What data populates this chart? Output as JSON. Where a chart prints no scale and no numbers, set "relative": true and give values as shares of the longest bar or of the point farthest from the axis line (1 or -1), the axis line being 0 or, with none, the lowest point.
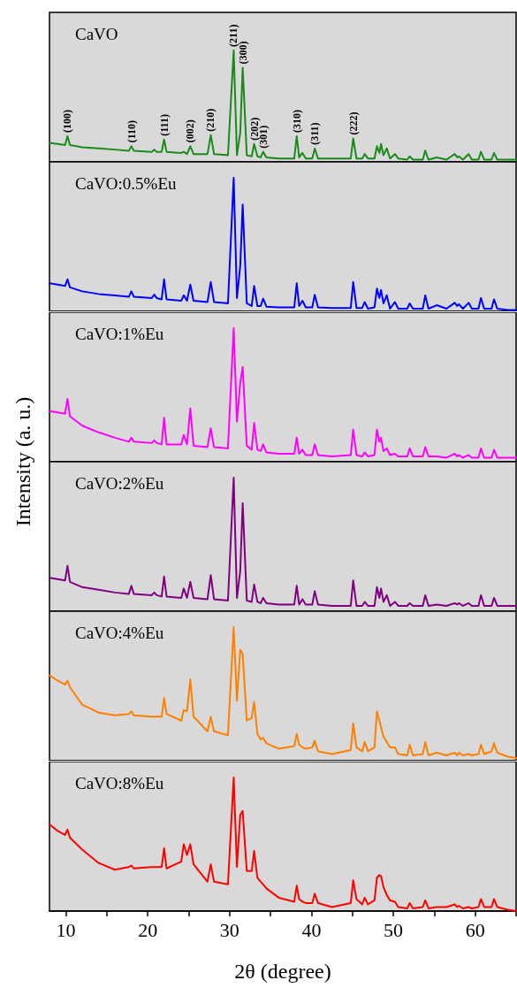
{
  "chart_data": [
    {
      "type": "line",
      "title": "CaVO",
      "relative": true,
      "xlim": [
        8,
        65
      ],
      "xticks": [
        10,
        {
          "value": 15,
          "label": null
        },
        20,
        {
          "value": 25,
          "label": null
        },
        30,
        {
          "value": 35,
          "label": null
        },
        40,
        {
          "value": 45,
          "label": null
        },
        50,
        {
          "value": 55,
          "label": null
        },
        60,
        {
          "value": 65,
          "label": null
        }
      ],
      "tick_labels": false,
      "x": [
        8,
        9,
        9.9,
        10.2,
        10.5,
        12,
        14,
        16,
        17.7,
        18,
        18.3,
        20.5,
        20.8,
        21.1,
        21.7,
        22,
        22.3,
        24.1,
        24.4,
        24.8,
        25.2,
        25.6,
        27.3,
        27.7,
        28.1,
        29.8,
        30.5,
        30.9,
        31.3,
        31.6,
        32.1,
        32.7,
        33,
        33.4,
        33.8,
        34.1,
        34.5,
        36,
        37.9,
        38.2,
        38.5,
        38.9,
        39.3,
        40.1,
        40.4,
        40.8,
        42.5,
        44.8,
        45.1,
        45.5,
        46.2,
        46.5,
        46.9,
        47.7,
        48,
        48.3,
        48.5,
        48.8,
        49.2,
        49.6,
        50.2,
        50.6,
        51.7,
        52,
        52.4,
        53.6,
        53.9,
        54.3,
        55.3,
        56.5,
        57.5,
        57.8,
        58,
        58.5,
        59.2,
        59.6,
        60.4,
        60.7,
        61.1,
        62,
        62.3,
        62.7,
        64,
        65
      ],
      "series": [
        {
          "color": "#1a8a1a",
          "values": [
            0.17,
            0.16,
            0.15,
            0.23,
            0.15,
            0.13,
            0.12,
            0.11,
            0.1,
            0.14,
            0.1,
            0.09,
            0.11,
            0.09,
            0.09,
            0.2,
            0.09,
            0.08,
            0.09,
            0.07,
            0.14,
            0.07,
            0.07,
            0.24,
            0.07,
            0.06,
            1.0,
            0.06,
            0.26,
            0.845,
            0.06,
            0.05,
            0.16,
            0.05,
            0.04,
            0.09,
            0.04,
            0.03,
            0.03,
            0.23,
            0.04,
            0.08,
            0.03,
            0.03,
            0.12,
            0.03,
            0.03,
            0.03,
            0.21,
            0.03,
            0.03,
            0.07,
            0.03,
            0.03,
            0.14,
            0.08,
            0.16,
            0.06,
            0.12,
            0.03,
            0.07,
            0.03,
            0.02,
            0.05,
            0.02,
            0.02,
            0.1,
            0.02,
            0.04,
            0.02,
            0.07,
            0.04,
            0.05,
            0.02,
            0.07,
            0.02,
            0.02,
            0.09,
            0.02,
            0.02,
            0.08,
            0.02,
            0.02,
            0.02
          ]
        }
      ],
      "annotations": [
        {
          "text": "(100)",
          "x": 10.2,
          "y": 0.23
        },
        {
          "text": "(110)",
          "x": 18,
          "y": 0.14
        },
        {
          "text": "(111)",
          "x": 22,
          "y": 0.2
        },
        {
          "text": "(002)",
          "x": 25.2,
          "y": 0.14
        },
        {
          "text": "(210)",
          "x": 27.7,
          "y": 0.24
        },
        {
          "text": "(211)",
          "x": 30.5,
          "y": 1.0
        },
        {
          "text": "(300)",
          "x": 31.6,
          "y": 0.845
        },
        {
          "text": "(202)",
          "x": 33,
          "y": 0.16
        },
        {
          "text": "(301)",
          "x": 34.1,
          "y": 0.09
        },
        {
          "text": "(310)",
          "x": 38.2,
          "y": 0.23
        },
        {
          "text": "(311)",
          "x": 40.4,
          "y": 0.12
        },
        {
          "text": "(222)",
          "x": 45.1,
          "y": 0.21
        }
      ]
    },
    {
      "type": "line",
      "title": "CaVO:0.5%Eu",
      "relative": true,
      "xlim": [
        8,
        65
      ],
      "xticks": [
        10,
        {
          "value": 15,
          "label": null
        },
        20,
        {
          "value": 25,
          "label": null
        },
        30,
        {
          "value": 35,
          "label": null
        },
        40,
        {
          "value": 45,
          "label": null
        },
        50,
        {
          "value": 55,
          "label": null
        },
        60,
        {
          "value": 65,
          "label": null
        }
      ],
      "tick_labels": false,
      "x": [
        8,
        9,
        9.9,
        10.2,
        10.5,
        12,
        14,
        16,
        17.7,
        18,
        18.3,
        20.5,
        20.8,
        21.1,
        21.7,
        22,
        22.3,
        24.1,
        24.4,
        24.8,
        25.2,
        25.6,
        27.3,
        27.7,
        28.1,
        29.8,
        30.5,
        30.9,
        31.3,
        31.6,
        32.1,
        32.7,
        33,
        33.4,
        33.8,
        34.1,
        34.5,
        36,
        37.9,
        38.2,
        38.5,
        38.9,
        39.3,
        40.1,
        40.4,
        40.8,
        42.5,
        44.8,
        45.1,
        45.5,
        46.2,
        46.5,
        46.9,
        47.7,
        48,
        48.3,
        48.5,
        48.8,
        49.2,
        49.6,
        50.2,
        50.6,
        51.7,
        52,
        52.4,
        53.6,
        53.9,
        54.3,
        55.3,
        56.5,
        57.5,
        57.8,
        58,
        58.5,
        59.2,
        59.6,
        60.4,
        60.7,
        61.1,
        62,
        62.3,
        62.7,
        64,
        65
      ],
      "series": [
        {
          "color": "#0000ff",
          "values": [
            0.21,
            0.2,
            0.19,
            0.24,
            0.18,
            0.15,
            0.13,
            0.12,
            0.11,
            0.15,
            0.11,
            0.1,
            0.125,
            0.1,
            0.09,
            0.24,
            0.09,
            0.08,
            0.12,
            0.08,
            0.2,
            0.08,
            0.07,
            0.22,
            0.07,
            0.06,
            1.0,
            0.1,
            0.34,
            0.8,
            0.06,
            0.04,
            0.19,
            0.04,
            0.04,
            0.095,
            0.035,
            0.03,
            0.03,
            0.21,
            0.04,
            0.08,
            0.03,
            0.03,
            0.125,
            0.03,
            0.025,
            0.025,
            0.22,
            0.025,
            0.025,
            0.07,
            0.02,
            0.03,
            0.17,
            0.1,
            0.16,
            0.06,
            0.12,
            0.02,
            0.07,
            0.02,
            0.02,
            0.06,
            0.02,
            0.02,
            0.12,
            0.02,
            0.046,
            0.02,
            0.064,
            0.04,
            0.054,
            0.02,
            0.064,
            0.02,
            0.02,
            0.1,
            0.02,
            0.02,
            0.09,
            0.02,
            0.01,
            0.01
          ]
        }
      ]
    },
    {
      "type": "line",
      "title": "CaVO:1%Eu",
      "ylabel": "Intensity (a. u.)",
      "relative": true,
      "xlim": [
        8,
        65
      ],
      "xticks": [
        10,
        {
          "value": 15,
          "label": null
        },
        20,
        {
          "value": 25,
          "label": null
        },
        30,
        {
          "value": 35,
          "label": null
        },
        40,
        {
          "value": 45,
          "label": null
        },
        50,
        {
          "value": 55,
          "label": null
        },
        60,
        {
          "value": 65,
          "label": null
        }
      ],
      "tick_labels": false,
      "x": [
        8,
        9,
        9.9,
        10.2,
        10.5,
        12,
        14,
        16,
        17.7,
        18,
        18.3,
        20.5,
        20.8,
        21.1,
        21.7,
        22,
        22.3,
        24.1,
        24.4,
        24.8,
        25.2,
        25.6,
        27.3,
        27.7,
        28.1,
        29.8,
        30.5,
        30.9,
        31.3,
        31.6,
        32.1,
        32.7,
        33,
        33.4,
        33.8,
        34.1,
        34.5,
        36,
        37.9,
        38.2,
        38.5,
        38.9,
        39.3,
        40.1,
        40.4,
        40.8,
        42.5,
        44.8,
        45.1,
        45.5,
        46.2,
        46.5,
        46.9,
        47.7,
        48,
        48.3,
        48.5,
        48.8,
        49.2,
        49.6,
        50.2,
        50.6,
        51.7,
        52,
        52.4,
        53.6,
        53.9,
        54.3,
        55.3,
        56.5,
        57.5,
        57.8,
        58,
        58.5,
        59.2,
        59.6,
        60.4,
        60.7,
        61.1,
        62,
        62.3,
        62.7,
        64,
        65
      ],
      "series": [
        {
          "color": "#ff00ff",
          "values": [
            0.38,
            0.37,
            0.36,
            0.47,
            0.34,
            0.27,
            0.22,
            0.18,
            0.15,
            0.18,
            0.15,
            0.14,
            0.16,
            0.14,
            0.13,
            0.33,
            0.13,
            0.13,
            0.2,
            0.13,
            0.4,
            0.12,
            0.11,
            0.25,
            0.11,
            0.1,
            1.0,
            0.3,
            0.59,
            0.71,
            0.12,
            0.09,
            0.29,
            0.09,
            0.08,
            0.13,
            0.07,
            0.06,
            0.06,
            0.18,
            0.06,
            0.09,
            0.05,
            0.05,
            0.13,
            0.05,
            0.04,
            0.05,
            0.24,
            0.05,
            0.04,
            0.07,
            0.04,
            0.05,
            0.24,
            0.15,
            0.18,
            0.08,
            0.1,
            0.05,
            0.06,
            0.04,
            0.04,
            0.1,
            0.04,
            0.04,
            0.11,
            0.04,
            0.04,
            0.03,
            0.06,
            0.04,
            0.05,
            0.03,
            0.05,
            0.03,
            0.03,
            0.1,
            0.03,
            0.03,
            0.09,
            0.03,
            0.03,
            0.03
          ]
        }
      ]
    },
    {
      "type": "line",
      "title": "CaVO:2%Eu",
      "relative": true,
      "xlim": [
        8,
        65
      ],
      "xticks": [
        10,
        {
          "value": 15,
          "label": null
        },
        20,
        {
          "value": 25,
          "label": null
        },
        30,
        {
          "value": 35,
          "label": null
        },
        40,
        {
          "value": 45,
          "label": null
        },
        50,
        {
          "value": 55,
          "label": null
        },
        60,
        {
          "value": 65,
          "label": null
        }
      ],
      "tick_labels": false,
      "x": [
        8,
        9,
        9.9,
        10.2,
        10.5,
        12,
        14,
        16,
        17.7,
        18,
        18.3,
        20.5,
        20.8,
        21.1,
        21.7,
        22,
        22.3,
        24.1,
        24.4,
        24.8,
        25.2,
        25.6,
        27.3,
        27.7,
        28.1,
        29.8,
        30.5,
        30.9,
        31.3,
        31.6,
        32.1,
        32.7,
        33,
        33.4,
        33.8,
        34.1,
        34.5,
        36,
        37.9,
        38.2,
        38.5,
        38.9,
        39.3,
        40.1,
        40.4,
        40.8,
        42.5,
        44.8,
        45.1,
        45.5,
        46.2,
        46.5,
        46.9,
        47.7,
        48,
        48.3,
        48.5,
        48.8,
        49.2,
        49.6,
        50.2,
        50.6,
        51.7,
        52,
        52.4,
        53.6,
        53.9,
        54.3,
        55.3,
        56.5,
        57.5,
        57.8,
        58,
        58.5,
        59.2,
        59.6,
        60.4,
        60.7,
        61.1,
        62,
        62.3,
        62.7,
        64,
        65
      ],
      "series": [
        {
          "color": "#800080",
          "values": [
            0.25,
            0.24,
            0.23,
            0.34,
            0.22,
            0.18,
            0.16,
            0.14,
            0.13,
            0.19,
            0.13,
            0.12,
            0.14,
            0.12,
            0.11,
            0.26,
            0.11,
            0.1,
            0.17,
            0.1,
            0.22,
            0.1,
            0.09,
            0.27,
            0.09,
            0.08,
            1.0,
            0.1,
            0.3,
            0.81,
            0.08,
            0.07,
            0.2,
            0.07,
            0.06,
            0.1,
            0.06,
            0.05,
            0.05,
            0.19,
            0.05,
            0.09,
            0.05,
            0.05,
            0.15,
            0.05,
            0.04,
            0.04,
            0.23,
            0.04,
            0.04,
            0.07,
            0.04,
            0.04,
            0.18,
            0.1,
            0.17,
            0.07,
            0.12,
            0.04,
            0.07,
            0.04,
            0.04,
            0.06,
            0.04,
            0.04,
            0.12,
            0.04,
            0.05,
            0.04,
            0.06,
            0.05,
            0.06,
            0.04,
            0.06,
            0.04,
            0.04,
            0.12,
            0.04,
            0.04,
            0.1,
            0.04,
            0.04,
            0.04
          ]
        }
      ]
    },
    {
      "type": "line",
      "title": "CaVO:4%Eu",
      "relative": true,
      "xlim": [
        8,
        65
      ],
      "xticks": [
        10,
        {
          "value": 15,
          "label": null
        },
        20,
        {
          "value": 25,
          "label": null
        },
        30,
        {
          "value": 35,
          "label": null
        },
        40,
        {
          "value": 45,
          "label": null
        },
        50,
        {
          "value": 55,
          "label": null
        },
        60,
        {
          "value": 65,
          "label": null
        }
      ],
      "tick_labels": false,
      "x": [
        8,
        9,
        9.9,
        10.2,
        10.5,
        12,
        14,
        16,
        17.7,
        18,
        18.3,
        20.5,
        20.8,
        21.1,
        21.7,
        22,
        22.3,
        24.1,
        24.4,
        24.8,
        25.2,
        25.6,
        27.3,
        27.7,
        28.1,
        29.8,
        30.5,
        30.9,
        31.3,
        31.6,
        32.1,
        32.7,
        33,
        33.4,
        33.8,
        34.1,
        34.5,
        36,
        37.9,
        38.2,
        38.5,
        38.9,
        39.3,
        40.1,
        40.4,
        40.8,
        42.5,
        44.8,
        45.1,
        45.5,
        46.2,
        46.5,
        46.9,
        47.7,
        48,
        48.3,
        48.5,
        48.8,
        49.2,
        49.6,
        50.2,
        50.6,
        51.7,
        52,
        52.4,
        53.6,
        53.9,
        54.3,
        55.3,
        56.5,
        57.5,
        57.8,
        58,
        58.5,
        59.2,
        59.6,
        60.4,
        60.7,
        61.1,
        62,
        62.3,
        62.7,
        64,
        65
      ],
      "series": [
        {
          "color": "#ff8000",
          "values": [
            0.64,
            0.6,
            0.57,
            0.6,
            0.55,
            0.42,
            0.36,
            0.34,
            0.35,
            0.37,
            0.34,
            0.33,
            0.33,
            0.33,
            0.33,
            0.47,
            0.35,
            0.3,
            0.38,
            0.37,
            0.61,
            0.33,
            0.22,
            0.33,
            0.22,
            0.19,
            1.0,
            0.45,
            0.83,
            0.8,
            0.3,
            0.32,
            0.44,
            0.2,
            0.16,
            0.17,
            0.13,
            0.09,
            0.11,
            0.2,
            0.12,
            0.1,
            0.09,
            0.1,
            0.15,
            0.07,
            0.05,
            0.08,
            0.28,
            0.1,
            0.07,
            0.14,
            0.07,
            0.1,
            0.37,
            0.3,
            0.25,
            0.18,
            0.14,
            0.1,
            0.1,
            0.05,
            0.04,
            0.12,
            0.04,
            0.05,
            0.14,
            0.04,
            0.06,
            0.04,
            0.06,
            0.04,
            0.06,
            0.04,
            0.05,
            0.04,
            0.05,
            0.12,
            0.05,
            0.07,
            0.13,
            0.06,
            0.03,
            0.02
          ]
        }
      ]
    },
    {
      "type": "line",
      "title": "CaVO:8%Eu",
      "xlabel": "2θ (degree)",
      "relative": true,
      "xlim": [
        8,
        65
      ],
      "xticks": [
        10,
        {
          "value": 15,
          "label": null
        },
        20,
        {
          "value": 25,
          "label": null
        },
        30,
        {
          "value": 35,
          "label": null
        },
        40,
        {
          "value": 45,
          "label": null
        },
        50,
        {
          "value": 55,
          "label": null
        },
        60,
        {
          "value": 65,
          "label": null
        }
      ],
      "x": [
        8,
        9,
        9.9,
        10.2,
        10.5,
        12,
        14,
        16,
        17.7,
        18,
        18.3,
        20.5,
        20.8,
        21.1,
        21.7,
        22,
        22.3,
        24.1,
        24.4,
        24.8,
        25.2,
        25.6,
        27.3,
        27.7,
        28.1,
        29.8,
        30.5,
        30.9,
        31.3,
        31.6,
        32.1,
        32.7,
        33,
        33.4,
        33.8,
        34.1,
        34.5,
        36,
        37.9,
        38.2,
        38.5,
        38.9,
        39.3,
        40.1,
        40.4,
        40.8,
        42.5,
        44.8,
        45.1,
        45.5,
        46.2,
        46.5,
        46.9,
        47.7,
        48,
        48.3,
        48.5,
        48.8,
        49.2,
        49.6,
        50.2,
        50.6,
        51.7,
        52,
        52.4,
        53.6,
        53.9,
        54.3,
        55.3,
        56.5,
        57.5,
        57.8,
        58,
        58.5,
        59.2,
        59.6,
        60.4,
        60.7,
        61.1,
        62,
        62.3,
        62.7,
        64,
        65
      ],
      "series": [
        {
          "color": "#ff0000",
          "values": [
            0.65,
            0.6,
            0.57,
            0.61,
            0.55,
            0.46,
            0.36,
            0.31,
            0.33,
            0.34,
            0.32,
            0.33,
            0.33,
            0.33,
            0.33,
            0.47,
            0.32,
            0.37,
            0.5,
            0.42,
            0.5,
            0.35,
            0.22,
            0.35,
            0.22,
            0.2,
            1.0,
            0.33,
            0.72,
            0.75,
            0.3,
            0.3,
            0.45,
            0.25,
            0.22,
            0.2,
            0.17,
            0.1,
            0.07,
            0.19,
            0.09,
            0.07,
            0.06,
            0.06,
            0.13,
            0.06,
            0.03,
            0.06,
            0.23,
            0.09,
            0.05,
            0.1,
            0.05,
            0.08,
            0.25,
            0.27,
            0.26,
            0.18,
            0.12,
            0.08,
            0.07,
            0.03,
            0.02,
            0.06,
            0.02,
            0.03,
            0.08,
            0.02,
            0.03,
            0.03,
            0.05,
            0.03,
            0.04,
            0.02,
            0.03,
            0.02,
            0.03,
            0.09,
            0.03,
            0.03,
            0.09,
            0.03,
            0.01,
            0.0
          ]
        }
      ]
    }
  ]
}
